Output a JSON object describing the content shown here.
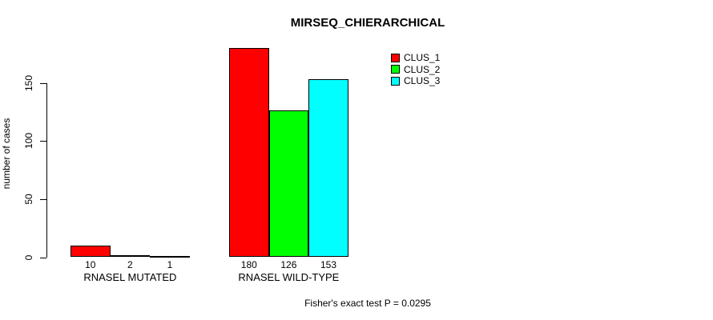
{
  "title": "MIRSEQ_CHIERARCHICAL",
  "footer": "Fisher's exact test P = 0.0295",
  "chart_data": {
    "type": "bar",
    "title": "MIRSEQ_CHIERARCHICAL",
    "ylabel": "number of cases",
    "xlabel": "",
    "yticks": [
      0,
      50,
      100,
      150
    ],
    "ylim": [
      0,
      185
    ],
    "grid": false,
    "legend_position": "top-right",
    "categories": [
      "RNASEL MUTATED",
      "RNASEL WILD-TYPE"
    ],
    "series": [
      {
        "name": "CLUS_1",
        "color": "#ff0000",
        "values": [
          10,
          180
        ]
      },
      {
        "name": "CLUS_2",
        "color": "#00ff00",
        "values": [
          2,
          126
        ]
      },
      {
        "name": "CLUS_3",
        "color": "#00ffff",
        "values": [
          1,
          153
        ]
      }
    ],
    "value_labels_shown": true,
    "annotation": "Fisher's exact test P = 0.0295"
  }
}
